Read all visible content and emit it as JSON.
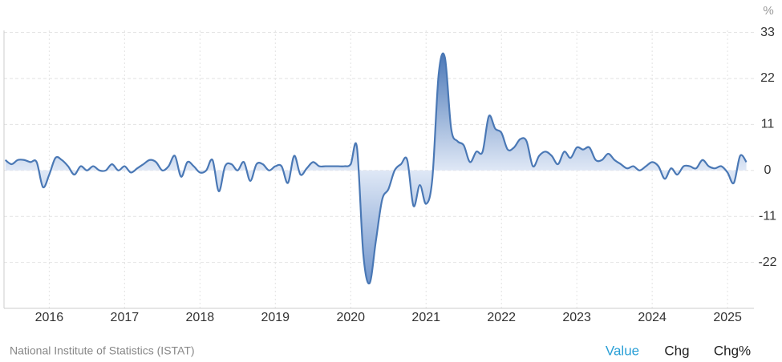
{
  "chart_data": {
    "type": "area",
    "ylabel": "%",
    "source": "National Institute of Statistics (ISTAT)",
    "buttons": [
      "Value",
      "Chg",
      "Chg%"
    ],
    "color": "#4a78b5",
    "grid": true,
    "xlim": [
      2015.4,
      2025.35
    ],
    "xticks": [
      2016,
      2017,
      2018,
      2019,
      2020,
      2021,
      2022,
      2023,
      2024,
      2025
    ],
    "ylim": [
      -33,
      33.5
    ],
    "yticks": [
      -22,
      -11,
      0,
      11,
      22,
      33
    ],
    "x": [
      2015.417,
      2015.5,
      2015.583,
      2015.667,
      2015.75,
      2015.833,
      2015.917,
      2016,
      2016.083,
      2016.167,
      2016.25,
      2016.333,
      2016.417,
      2016.5,
      2016.583,
      2016.667,
      2016.75,
      2016.833,
      2016.917,
      2017,
      2017.083,
      2017.167,
      2017.25,
      2017.333,
      2017.417,
      2017.5,
      2017.583,
      2017.667,
      2017.75,
      2017.833,
      2017.917,
      2018,
      2018.083,
      2018.167,
      2018.25,
      2018.333,
      2018.417,
      2018.5,
      2018.583,
      2018.667,
      2018.75,
      2018.833,
      2018.917,
      2019,
      2019.083,
      2019.167,
      2019.25,
      2019.333,
      2019.417,
      2019.5,
      2019.583,
      2019.667,
      2019.75,
      2019.833,
      2019.917,
      2020,
      2020.083,
      2020.167,
      2020.25,
      2020.333,
      2020.417,
      2020.5,
      2020.583,
      2020.667,
      2020.75,
      2020.833,
      2020.917,
      2021,
      2021.083,
      2021.167,
      2021.25,
      2021.333,
      2021.417,
      2021.5,
      2021.583,
      2021.667,
      2021.75,
      2021.833,
      2021.917,
      2022,
      2022.083,
      2022.167,
      2022.25,
      2022.333,
      2022.417,
      2022.5,
      2022.583,
      2022.667,
      2022.75,
      2022.833,
      2022.917,
      2023,
      2023.083,
      2023.167,
      2023.25,
      2023.333,
      2023.417,
      2023.5,
      2023.583,
      2023.667,
      2023.75,
      2023.833,
      2023.917,
      2024,
      2024.083,
      2024.167,
      2024.25,
      2024.333,
      2024.417,
      2024.5,
      2024.583,
      2024.667,
      2024.75,
      2024.833,
      2024.917,
      2025,
      2025.083,
      2025.167,
      2025.25
    ],
    "values": [
      2.5,
      1.5,
      2.5,
      2.5,
      2,
      2,
      -4,
      -1,
      3,
      2.5,
      1,
      -1,
      1,
      0,
      1,
      0,
      0,
      1.5,
      0,
      1,
      -0.5,
      0.5,
      1.5,
      2.5,
      2,
      0,
      1,
      3.5,
      -1.5,
      2,
      1,
      -0.5,
      0,
      2.5,
      -5,
      1,
      1.5,
      0,
      2,
      -2.5,
      1.5,
      1.5,
      0,
      1,
      1,
      -3,
      3.5,
      -1,
      0.5,
      2,
      1,
      1,
      1,
      1,
      1,
      1.5,
      5.5,
      -20,
      -27,
      -17,
      -7,
      -4.5,
      0,
      1.5,
      2.5,
      -8.5,
      -3.5,
      -8,
      -2,
      23,
      27,
      10,
      7,
      6,
      2,
      4.5,
      4.5,
      13,
      10,
      9,
      5,
      5.5,
      7.5,
      7,
      1,
      3.5,
      4.5,
      3.5,
      1.5,
      4.5,
      3,
      5.5,
      5,
      5.5,
      2.5,
      2.5,
      4,
      2.5,
      1.5,
      0.5,
      1,
      0,
      1,
      2,
      1,
      -2,
      0.5,
      -1,
      1,
      1,
      0.5,
      2.5,
      1,
      0.5,
      1,
      -0.5,
      -3,
      3.5,
      2
    ]
  }
}
